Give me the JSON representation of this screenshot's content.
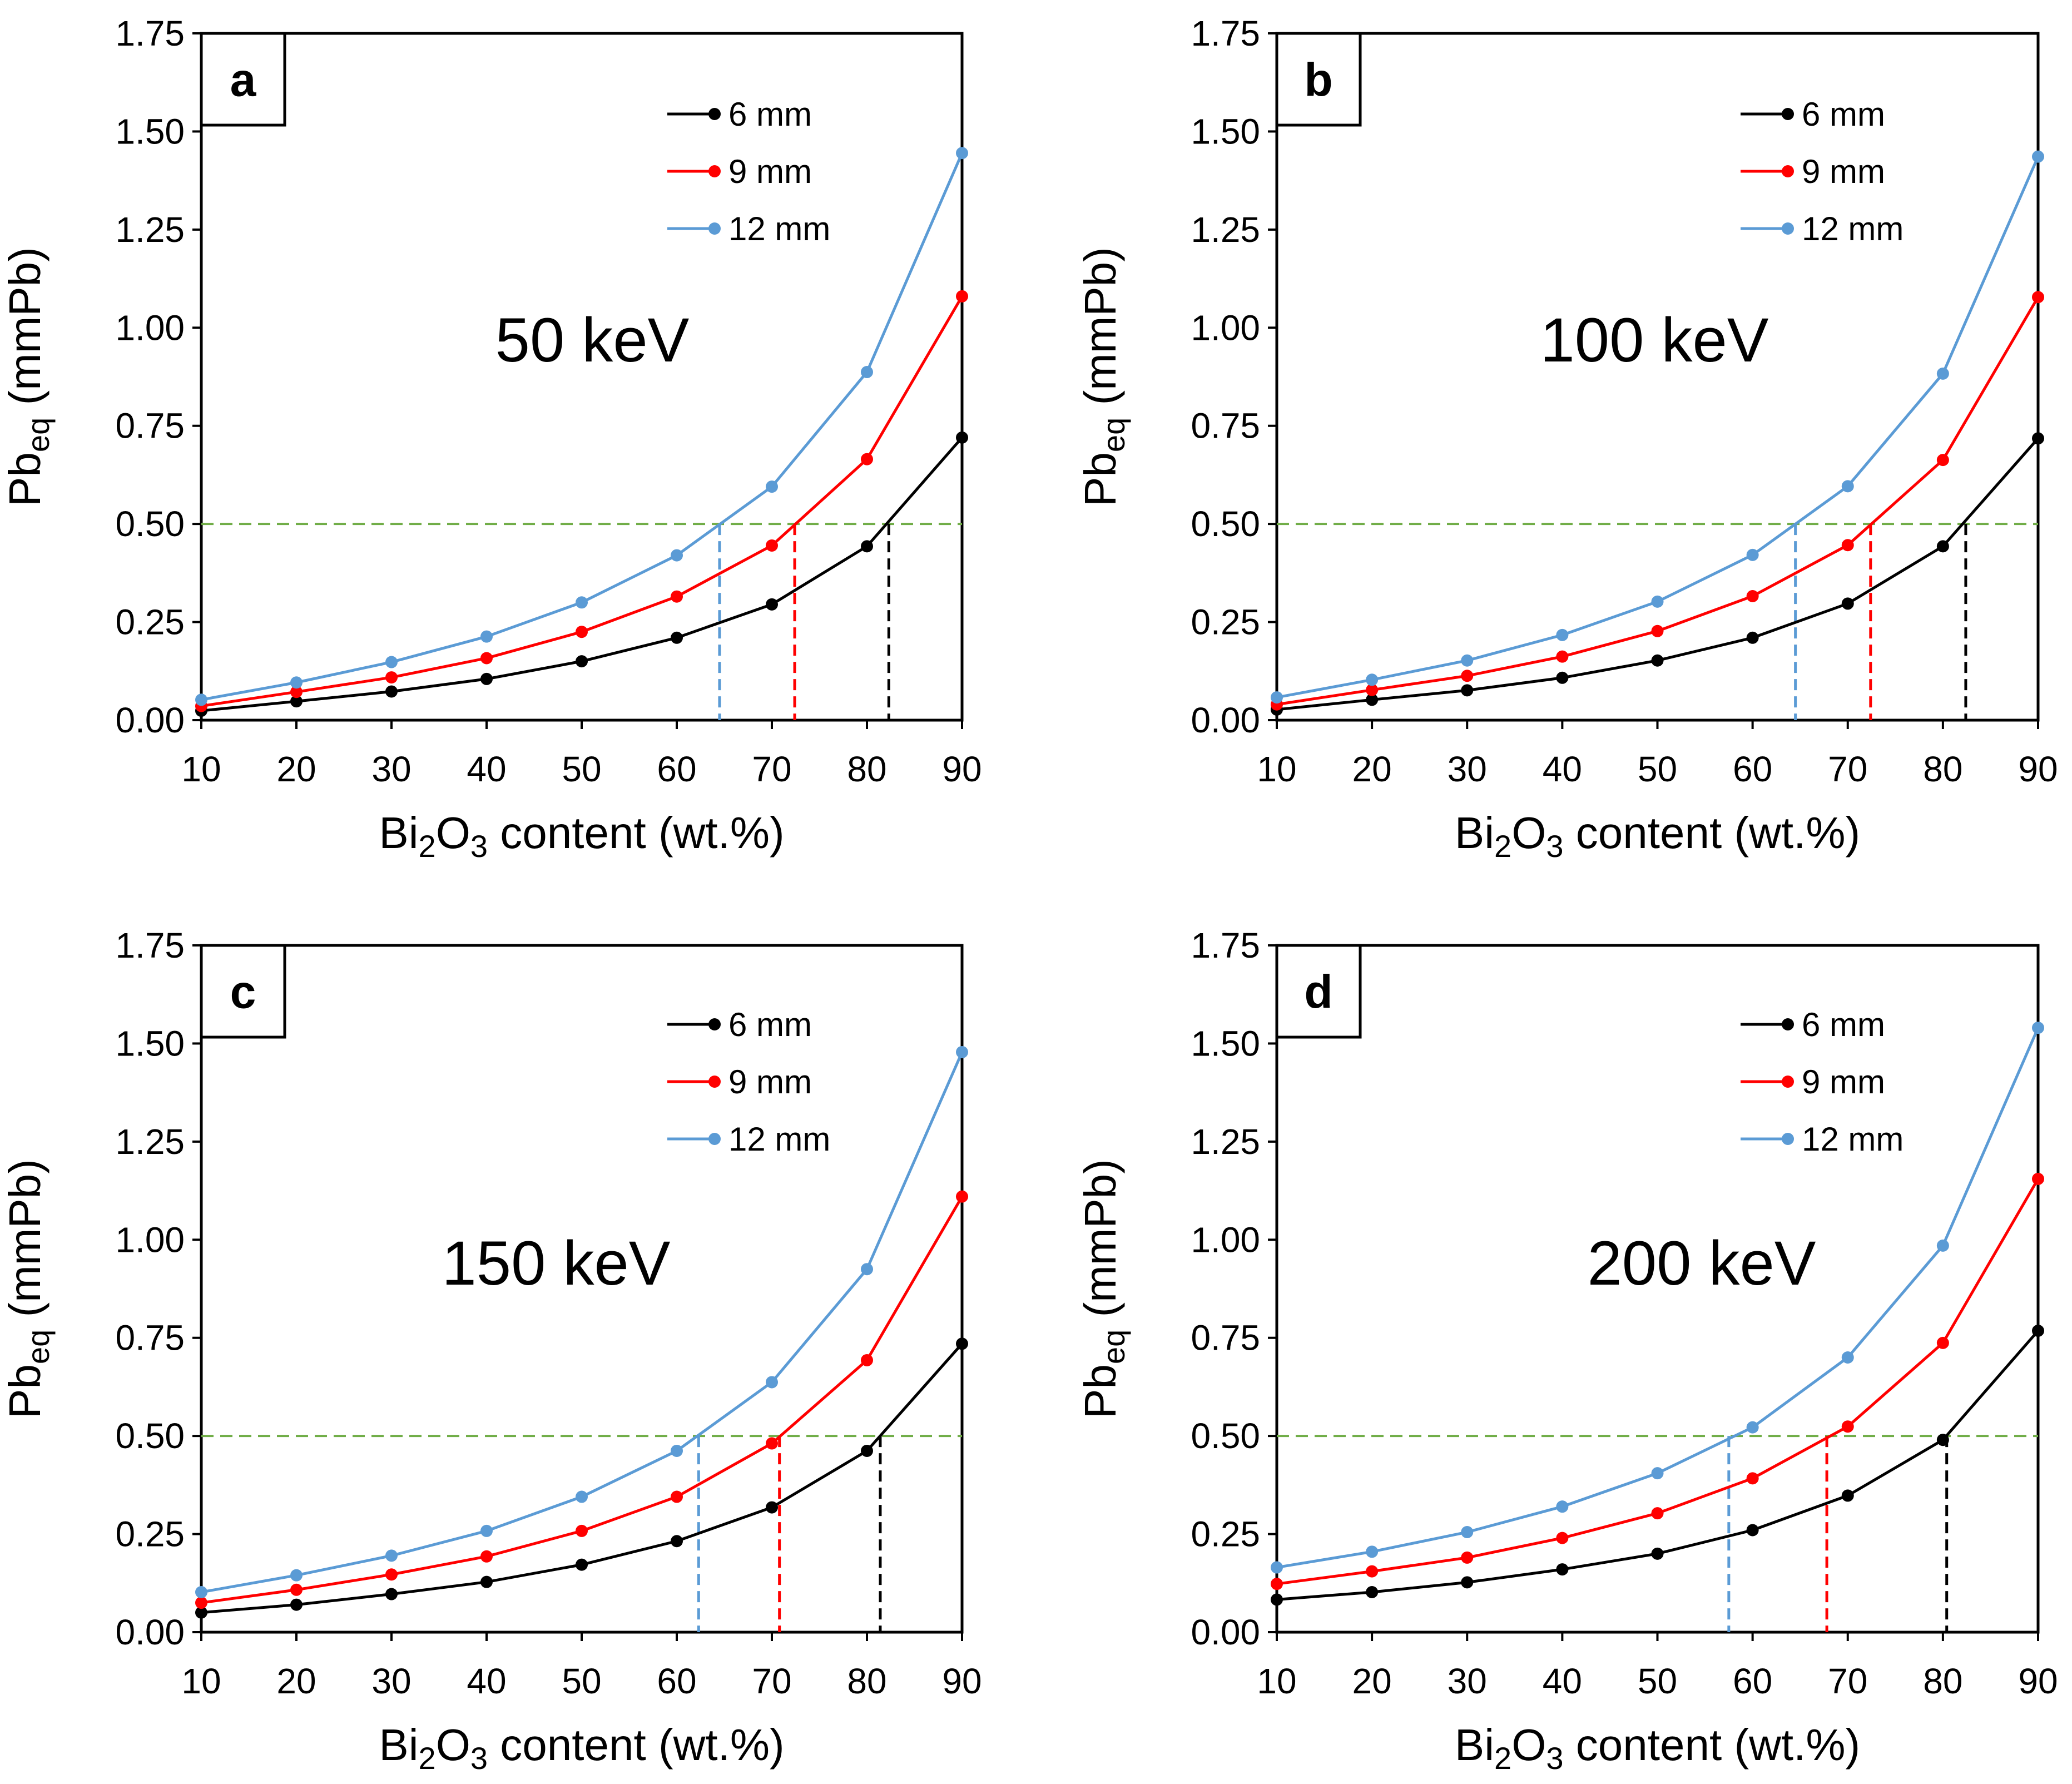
{
  "chart_data": [
    {
      "type": "line",
      "panel_label": "a",
      "energy_label": "50 keV",
      "xlabel": {
        "prefix": "Bi",
        "sub1": "2",
        "mid": "O",
        "sub2": "3",
        "suffix": " content (wt.%)"
      },
      "ylabel": {
        "main": "Pb",
        "sub": "eq",
        "suffix": " (mmPb)"
      },
      "x": [
        10,
        20,
        30,
        40,
        50,
        60,
        70,
        80,
        90
      ],
      "xlim": [
        10,
        90
      ],
      "ylim": [
        0,
        1.75
      ],
      "x_ticks": [
        "10",
        "20",
        "30",
        "40",
        "50",
        "60",
        "70",
        "80",
        "90"
      ],
      "y_ticks": [
        "0.00",
        "0.25",
        "0.50",
        "0.75",
        "1.00",
        "1.25",
        "1.50",
        "1.75"
      ],
      "legend_position": "top-right",
      "reference_line": {
        "y": 0.5,
        "color": "#70ad47"
      },
      "series": [
        {
          "name": "6 mm",
          "color": "#000000",
          "values": [
            0.024,
            0.048,
            0.073,
            0.105,
            0.15,
            0.21,
            0.295,
            0.443,
            0.72
          ],
          "crossing_x": 82.3
        },
        {
          "name": "9 mm",
          "color": "#ff0000",
          "values": [
            0.036,
            0.072,
            0.109,
            0.158,
            0.225,
            0.315,
            0.445,
            0.665,
            1.08
          ],
          "crossing_x": 72.4
        },
        {
          "name": "12 mm",
          "color": "#5b9bd5",
          "values": [
            0.052,
            0.096,
            0.148,
            0.213,
            0.3,
            0.42,
            0.595,
            0.887,
            1.445
          ],
          "crossing_x": 64.5
        }
      ]
    },
    {
      "type": "line",
      "panel_label": "b",
      "energy_label": "100 keV",
      "xlabel": {
        "prefix": "Bi",
        "sub1": "2",
        "mid": "O",
        "sub2": "3",
        "suffix": " content (wt.%)"
      },
      "ylabel": {
        "main": "Pb",
        "sub": "eq",
        "suffix": " (mmPb)"
      },
      "x": [
        10,
        20,
        30,
        40,
        50,
        60,
        70,
        80,
        90
      ],
      "xlim": [
        10,
        90
      ],
      "ylim": [
        0,
        1.75
      ],
      "x_ticks": [
        "10",
        "20",
        "30",
        "40",
        "50",
        "60",
        "70",
        "80",
        "90"
      ],
      "y_ticks": [
        "0.00",
        "0.25",
        "0.50",
        "0.75",
        "1.00",
        "1.25",
        "1.50",
        "1.75"
      ],
      "legend_position": "top-right",
      "reference_line": {
        "y": 0.5,
        "color": "#70ad47"
      },
      "series": [
        {
          "name": "6 mm",
          "color": "#000000",
          "values": [
            0.027,
            0.052,
            0.076,
            0.108,
            0.152,
            0.21,
            0.297,
            0.443,
            0.718
          ],
          "crossing_x": 82.4
        },
        {
          "name": "9 mm",
          "color": "#ff0000",
          "values": [
            0.04,
            0.077,
            0.113,
            0.162,
            0.227,
            0.316,
            0.446,
            0.663,
            1.078
          ],
          "crossing_x": 72.4
        },
        {
          "name": "12 mm",
          "color": "#5b9bd5",
          "values": [
            0.058,
            0.103,
            0.152,
            0.217,
            0.302,
            0.421,
            0.596,
            0.883,
            1.436
          ],
          "crossing_x": 64.5
        }
      ]
    },
    {
      "type": "line",
      "panel_label": "c",
      "energy_label": "150 keV",
      "xlabel": {
        "prefix": "Bi",
        "sub1": "2",
        "mid": "O",
        "sub2": "3",
        "suffix": " content (wt.%)"
      },
      "ylabel": {
        "main": "Pb",
        "sub": "eq",
        "suffix": " (mmPb)"
      },
      "x": [
        10,
        20,
        30,
        40,
        50,
        60,
        70,
        80,
        90
      ],
      "xlim": [
        10,
        90
      ],
      "ylim": [
        0,
        1.75
      ],
      "x_ticks": [
        "10",
        "20",
        "30",
        "40",
        "50",
        "60",
        "70",
        "80",
        "90"
      ],
      "y_ticks": [
        "0.00",
        "0.25",
        "0.50",
        "0.75",
        "1.00",
        "1.25",
        "1.50",
        "1.75"
      ],
      "legend_position": "top-right",
      "reference_line": {
        "y": 0.5,
        "color": "#70ad47"
      },
      "series": [
        {
          "name": "6 mm",
          "color": "#000000",
          "values": [
            0.05,
            0.07,
            0.097,
            0.128,
            0.172,
            0.232,
            0.318,
            0.462,
            0.735
          ],
          "crossing_x": 81.4
        },
        {
          "name": "9 mm",
          "color": "#ff0000",
          "values": [
            0.075,
            0.108,
            0.147,
            0.193,
            0.258,
            0.345,
            0.481,
            0.693,
            1.11
          ],
          "crossing_x": 70.8
        },
        {
          "name": "12 mm",
          "color": "#5b9bd5",
          "values": [
            0.102,
            0.145,
            0.195,
            0.258,
            0.345,
            0.462,
            0.637,
            0.925,
            1.478
          ],
          "crossing_x": 62.3
        }
      ]
    },
    {
      "type": "line",
      "panel_label": "d",
      "energy_label": "200 keV",
      "xlabel": {
        "prefix": "Bi",
        "sub1": "2",
        "mid": "O",
        "sub2": "3",
        "suffix": " content (wt.%)"
      },
      "ylabel": {
        "main": "Pb",
        "sub": "eq",
        "suffix": " (mmPb)"
      },
      "x": [
        10,
        20,
        30,
        40,
        50,
        60,
        70,
        80,
        90
      ],
      "xlim": [
        10,
        90
      ],
      "ylim": [
        0,
        1.75
      ],
      "x_ticks": [
        "10",
        "20",
        "30",
        "40",
        "50",
        "60",
        "70",
        "80",
        "90"
      ],
      "y_ticks": [
        "0.00",
        "0.25",
        "0.50",
        "0.75",
        "1.00",
        "1.25",
        "1.50",
        "1.75"
      ],
      "legend_position": "top-right",
      "reference_line": {
        "y": 0.5,
        "color": "#70ad47"
      },
      "series": [
        {
          "name": "6 mm",
          "color": "#000000",
          "values": [
            0.083,
            0.102,
            0.127,
            0.16,
            0.2,
            0.26,
            0.348,
            0.49,
            0.768
          ],
          "crossing_x": 80.4
        },
        {
          "name": "9 mm",
          "color": "#ff0000",
          "values": [
            0.123,
            0.155,
            0.19,
            0.24,
            0.303,
            0.392,
            0.524,
            0.737,
            1.155
          ],
          "crossing_x": 67.8
        },
        {
          "name": "12 mm",
          "color": "#5b9bd5",
          "values": [
            0.165,
            0.205,
            0.255,
            0.32,
            0.405,
            0.522,
            0.7,
            0.985,
            1.54
          ],
          "crossing_x": 57.5
        }
      ]
    }
  ]
}
